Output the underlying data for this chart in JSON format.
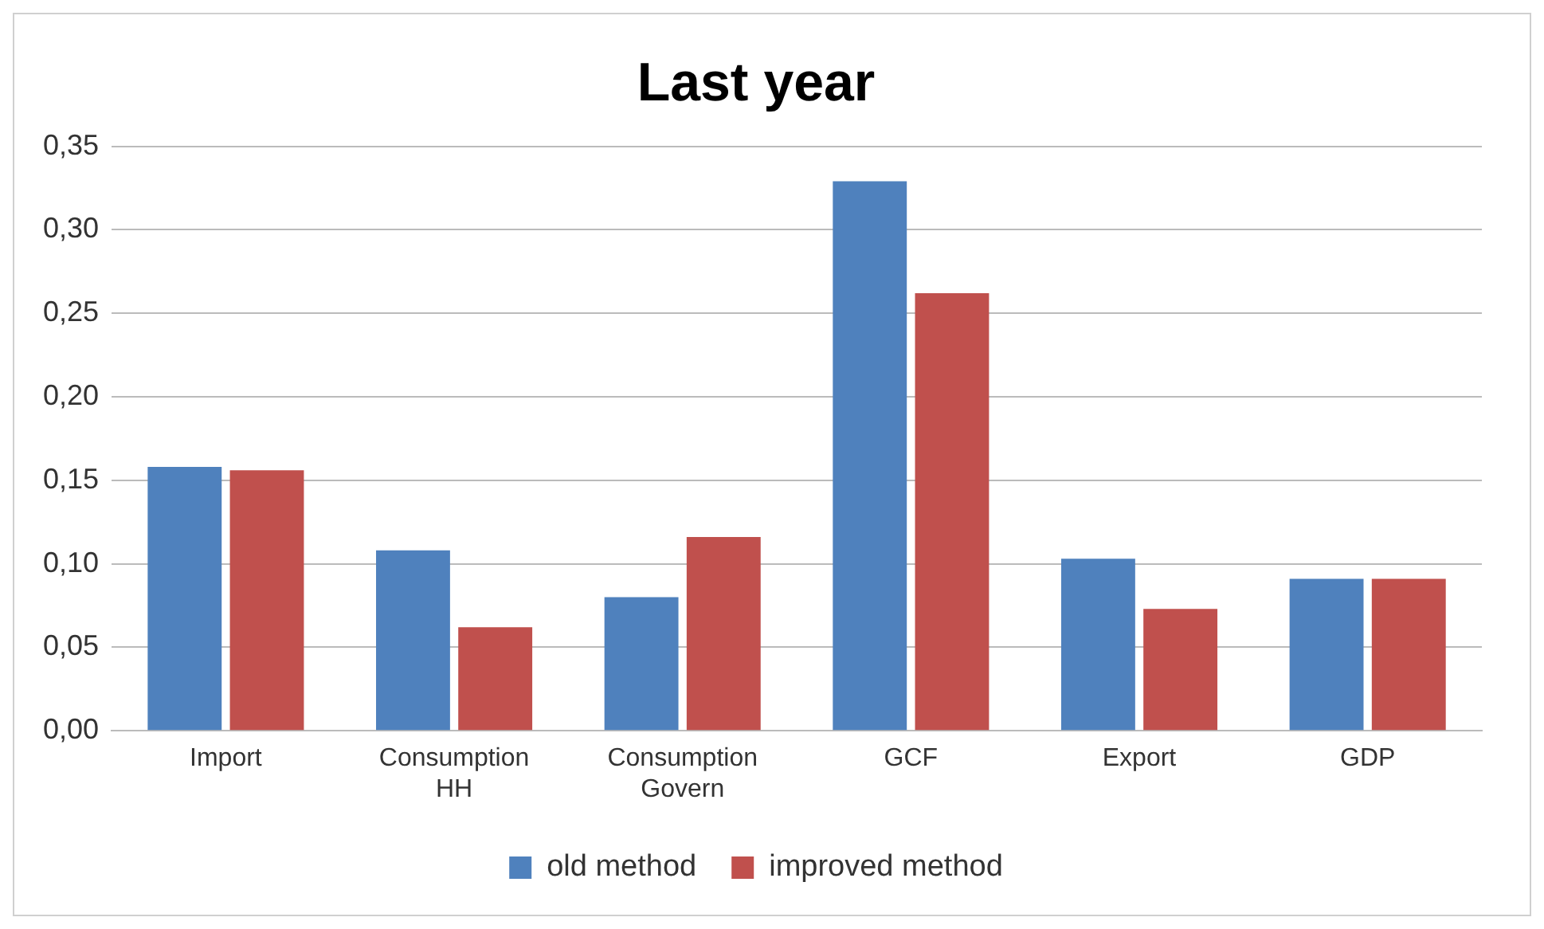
{
  "chart_data": {
    "type": "bar",
    "title": "Last year",
    "categories": [
      "Import",
      "Consumption HH",
      "Consumption Govern",
      "GCF",
      "Export",
      "GDP"
    ],
    "series": [
      {
        "name": "old method",
        "color": "#4f81bd",
        "values": [
          0.158,
          0.108,
          0.08,
          0.329,
          0.103,
          0.091
        ]
      },
      {
        "name": "improved method",
        "color": "#c0504d",
        "values": [
          0.156,
          0.062,
          0.116,
          0.262,
          0.073,
          0.091
        ]
      }
    ],
    "ylim": [
      0,
      0.35
    ],
    "yticks": [
      {
        "value": 0,
        "label": "0,00"
      },
      {
        "value": 0.05,
        "label": "0,05"
      },
      {
        "value": 0.1,
        "label": "0,10"
      },
      {
        "value": 0.15,
        "label": "0,15"
      },
      {
        "value": 0.2,
        "label": "0,20"
      },
      {
        "value": 0.25,
        "label": "0,25"
      },
      {
        "value": 0.3,
        "label": "0,30"
      },
      {
        "value": 0.35,
        "label": "0,35"
      }
    ],
    "grid": "y",
    "legend": "bottom"
  }
}
